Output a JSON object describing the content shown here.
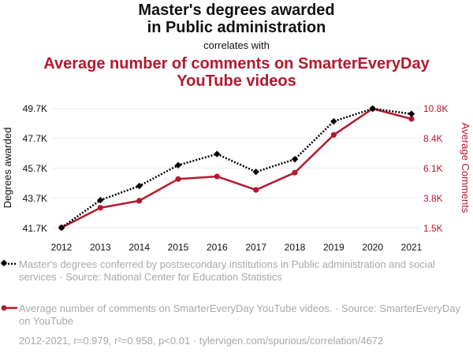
{
  "title": {
    "line1": "Master's degrees awarded",
    "line2": "in Public administration",
    "connector": "correlates with",
    "line3": "Average number of comments on SmarterEveryDay",
    "line4": "YouTube videos"
  },
  "axes": {
    "left_label": "Degrees awarded",
    "right_label": "Average Comments",
    "left_ticks": [
      "49.7K",
      "47.7K",
      "45.7K",
      "43.7K",
      "41.7K"
    ],
    "right_ticks": [
      "10.8K",
      "8.4K",
      "6.1K",
      "3.8K",
      "1.5K"
    ]
  },
  "legend": {
    "series1": "Master's degrees conferred by postsecondary institutions in Public administration and social services · Source: National Center for Education Statistics",
    "series2": "Average number of comments on SmarterEveryDay YouTube videos. · Source: SmarterEveryDay on YouTube"
  },
  "footer": "2012-2021, r=0.979, r²=0.958, p<0.01 · tylervigen.com/spurious/correlation/4672",
  "colors": {
    "series1": "#000000",
    "series2": "#b5182f",
    "grid": "#eeeeee",
    "muted_text": "#a8a8a8"
  },
  "chart_data": {
    "type": "line",
    "x": [
      2012,
      2013,
      2014,
      2015,
      2016,
      2017,
      2018,
      2019,
      2020,
      2021
    ],
    "series": [
      {
        "axis": "left",
        "style": "dotted",
        "marker": "diamond",
        "values": [
          41700,
          43550,
          44500,
          45900,
          46650,
          45450,
          46300,
          48850,
          49700,
          49350
        ]
      },
      {
        "axis": "right",
        "style": "solid",
        "marker": "circle",
        "values": [
          1500,
          3050,
          3600,
          5300,
          5500,
          4450,
          5800,
          8750,
          10800,
          10000
        ]
      }
    ],
    "y_left_range": [
      41700,
      49700
    ],
    "y_right_range": [
      1500,
      10800
    ],
    "grid": true,
    "legend_position": "bottom"
  }
}
